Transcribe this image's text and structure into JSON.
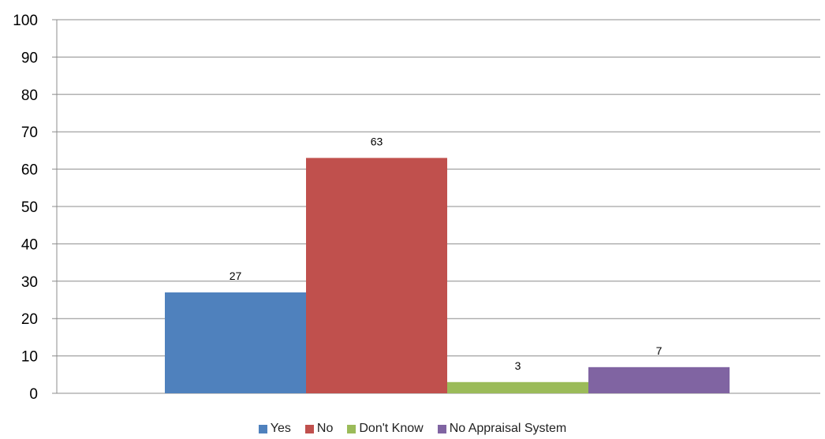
{
  "chart_data": {
    "type": "bar",
    "title": "",
    "xlabel": "",
    "ylabel": "",
    "ylim": [
      0,
      100
    ],
    "yticks": [
      0,
      10,
      20,
      30,
      40,
      50,
      60,
      70,
      80,
      90,
      100
    ],
    "grid": true,
    "legend_position": "bottom",
    "series": [
      {
        "name": "Yes",
        "value": 27,
        "color": "#4F81BD"
      },
      {
        "name": "No",
        "value": 63,
        "color": "#C0504D"
      },
      {
        "name": "Don't Know",
        "value": 3,
        "color": "#9BBB59"
      },
      {
        "name": "No Appraisal System",
        "value": 7,
        "color": "#8064A2"
      }
    ]
  }
}
